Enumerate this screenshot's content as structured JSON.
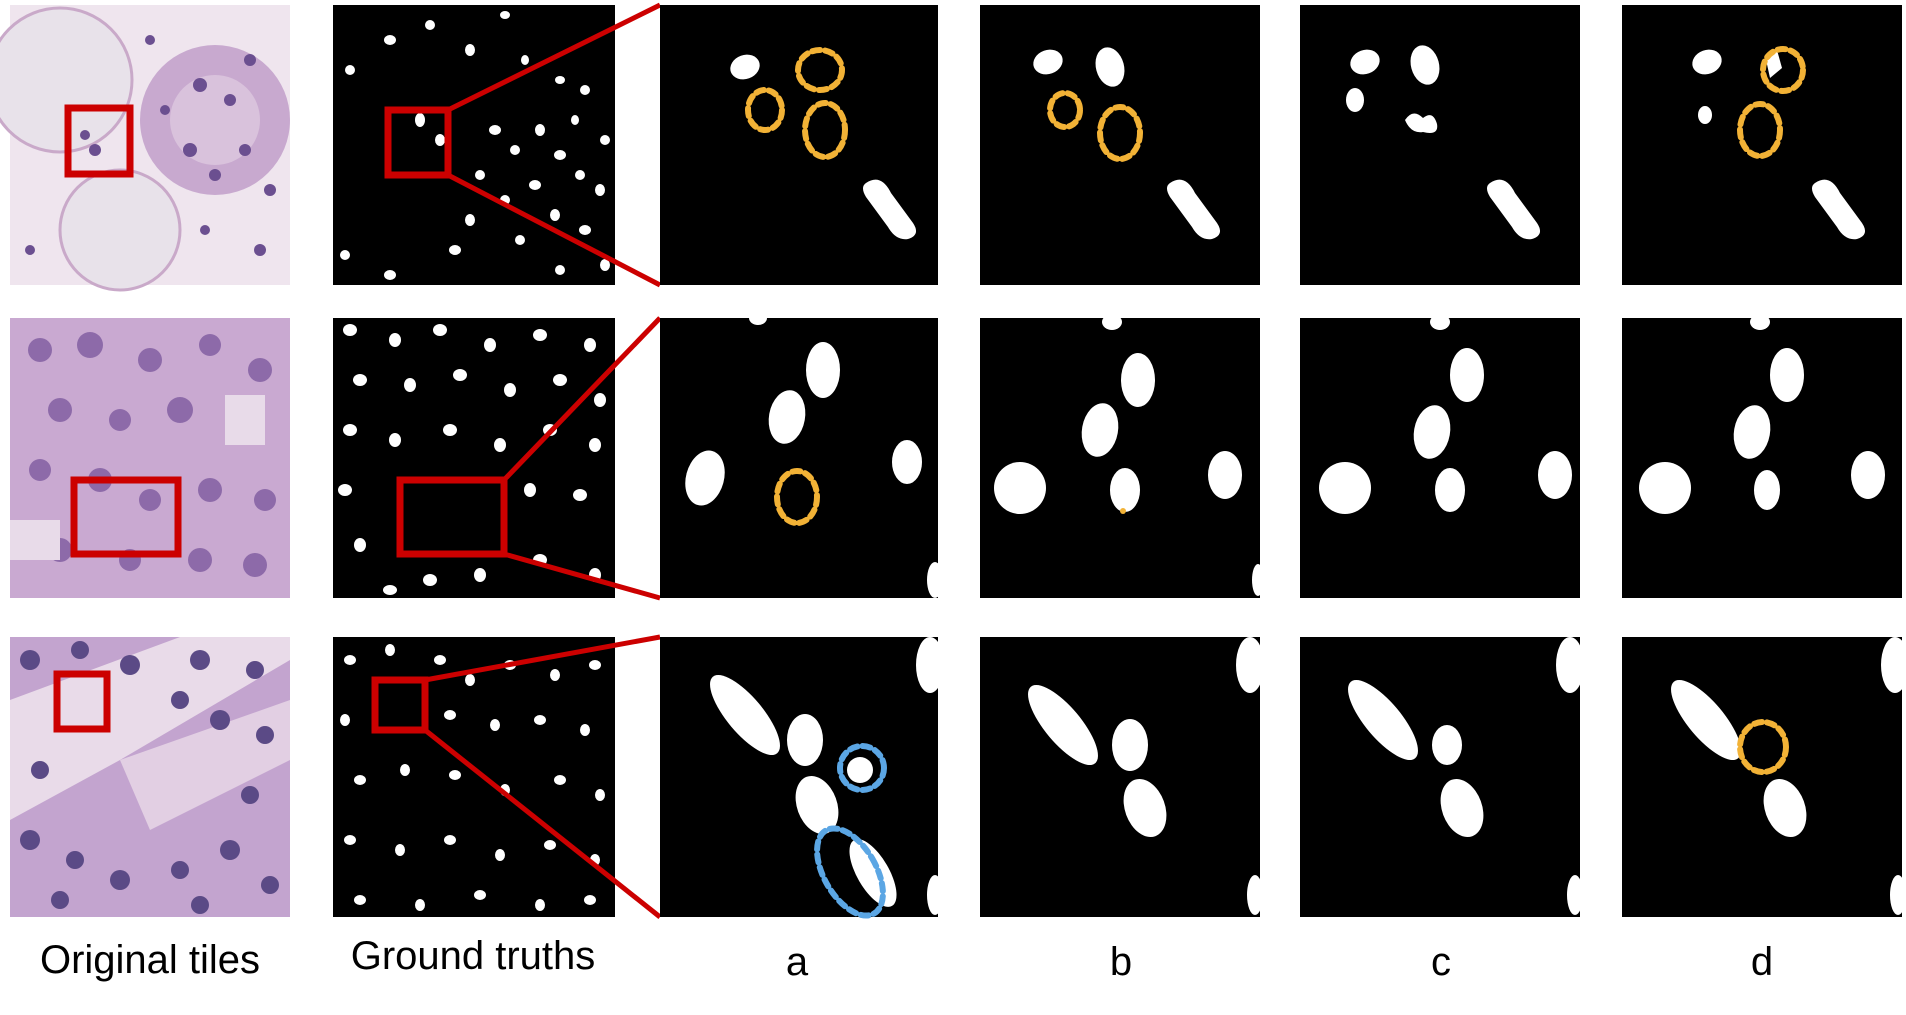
{
  "figure": {
    "column_labels": [
      "Original tiles",
      "Ground truths",
      "a",
      "b",
      "c",
      "d"
    ]
  },
  "colors": {
    "background": "#ffffff",
    "mask_bg": "#000000",
    "mask_fg": "#ffffff",
    "roi_box": "#cc0000",
    "annotation_orange": "#f2b236",
    "annotation_blue": "#5ba6e4",
    "tissue_light": "#e9dbe6",
    "tissue_purple": "#b99cc8",
    "nucleus": "#6b4f90"
  }
}
